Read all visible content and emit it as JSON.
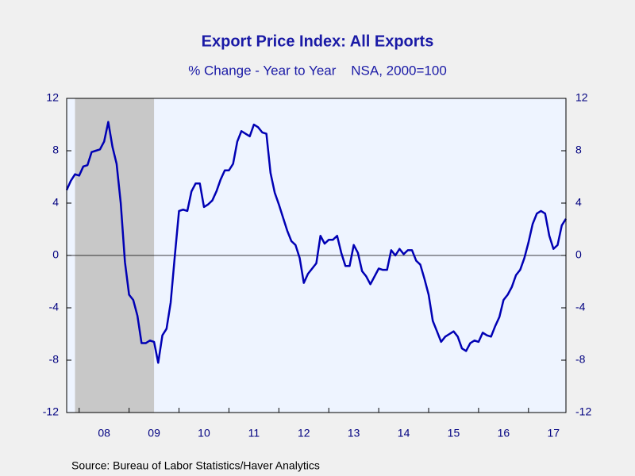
{
  "chart_data": {
    "type": "line",
    "title": "Export Price Index: All Exports",
    "subtitle": "% Change - Year to Year    NSA, 2000=100",
    "source": "Source:  Bureau of Labor Statistics/Haver Analytics",
    "xlim": [
      2007.75,
      2017.75
    ],
    "xticks": [
      {
        "value": 2008.5,
        "label": "08"
      },
      {
        "value": 2009.5,
        "label": "09"
      },
      {
        "value": 2010.5,
        "label": "10"
      },
      {
        "value": 2011.5,
        "label": "11"
      },
      {
        "value": 2012.5,
        "label": "12"
      },
      {
        "value": 2013.5,
        "label": "13"
      },
      {
        "value": 2014.5,
        "label": "14"
      },
      {
        "value": 2015.5,
        "label": "15"
      },
      {
        "value": 2016.5,
        "label": "16"
      },
      {
        "value": 2017.5,
        "label": "17"
      }
    ],
    "ylim": [
      -12,
      12
    ],
    "yticks": [
      -12,
      -8,
      -4,
      0,
      4,
      8,
      12
    ],
    "y2lim": [
      -12,
      12
    ],
    "y2ticks": [
      -12,
      -8,
      -4,
      0,
      4,
      8,
      12
    ],
    "recession": [
      2007.917,
      2009.5
    ],
    "zero_line": true,
    "x": [
      2007.75,
      2007.833,
      2007.917,
      2008.0,
      2008.083,
      2008.167,
      2008.25,
      2008.333,
      2008.417,
      2008.5,
      2008.583,
      2008.667,
      2008.75,
      2008.833,
      2008.917,
      2009.0,
      2009.083,
      2009.167,
      2009.25,
      2009.333,
      2009.417,
      2009.5,
      2009.583,
      2009.667,
      2009.75,
      2009.833,
      2009.917,
      2010.0,
      2010.083,
      2010.167,
      2010.25,
      2010.333,
      2010.417,
      2010.5,
      2010.583,
      2010.667,
      2010.75,
      2010.833,
      2010.917,
      2011.0,
      2011.083,
      2011.167,
      2011.25,
      2011.333,
      2011.417,
      2011.5,
      2011.583,
      2011.667,
      2011.75,
      2011.833,
      2011.917,
      2012.0,
      2012.083,
      2012.167,
      2012.25,
      2012.333,
      2012.417,
      2012.5,
      2012.583,
      2012.667,
      2012.75,
      2012.833,
      2012.917,
      2013.0,
      2013.083,
      2013.167,
      2013.25,
      2013.333,
      2013.417,
      2013.5,
      2013.583,
      2013.667,
      2013.75,
      2013.833,
      2013.917,
      2014.0,
      2014.083,
      2014.167,
      2014.25,
      2014.333,
      2014.417,
      2014.5,
      2014.583,
      2014.667,
      2014.75,
      2014.833,
      2014.917,
      2015.0,
      2015.083,
      2015.167,
      2015.25,
      2015.333,
      2015.417,
      2015.5,
      2015.583,
      2015.667,
      2015.75,
      2015.833,
      2015.917,
      2016.0,
      2016.083,
      2016.167,
      2016.25,
      2016.333,
      2016.417,
      2016.5,
      2016.583,
      2016.667,
      2016.75,
      2016.833,
      2016.917,
      2017.0,
      2017.083,
      2017.167,
      2017.25,
      2017.333,
      2017.417,
      2017.5,
      2017.583,
      2017.667,
      2017.75
    ],
    "series": [
      {
        "name": "Export Price Index",
        "color": "#0000b4",
        "values": [
          5.0,
          5.7,
          6.2,
          6.1,
          6.8,
          6.9,
          7.9,
          8.0,
          8.1,
          8.7,
          10.2,
          8.3,
          7.0,
          4.0,
          -0.5,
          -3.0,
          -3.4,
          -4.6,
          -6.7,
          -6.7,
          -6.5,
          -6.6,
          -8.2,
          -6.1,
          -5.6,
          -3.6,
          0.0,
          3.4,
          3.5,
          3.4,
          4.9,
          5.5,
          5.5,
          3.7,
          3.9,
          4.2,
          4.9,
          5.8,
          6.5,
          6.5,
          7.0,
          8.7,
          9.5,
          9.3,
          9.1,
          10.0,
          9.8,
          9.4,
          9.3,
          6.3,
          4.8,
          3.9,
          2.9,
          1.9,
          1.1,
          0.8,
          -0.2,
          -2.1,
          -1.4,
          -1.0,
          -0.6,
          1.5,
          0.9,
          1.2,
          1.2,
          1.5,
          0.2,
          -0.8,
          -0.8,
          0.8,
          0.2,
          -1.2,
          -1.6,
          -2.2,
          -1.6,
          -1.0,
          -1.1,
          -1.1,
          0.4,
          0.0,
          0.5,
          0.1,
          0.4,
          0.4,
          -0.4,
          -0.7,
          -1.8,
          -3.0,
          -5.0,
          -5.8,
          -6.6,
          -6.2,
          -6.0,
          -5.8,
          -6.2,
          -7.1,
          -7.3,
          -6.7,
          -6.5,
          -6.6,
          -5.9,
          -6.1,
          -6.2,
          -5.4,
          -4.7,
          -3.4,
          -3.0,
          -2.4,
          -1.5,
          -1.1,
          -0.2,
          1.0,
          2.4,
          3.2,
          3.4,
          3.2,
          1.5,
          0.5,
          0.8,
          2.3,
          2.8
        ]
      }
    ]
  }
}
